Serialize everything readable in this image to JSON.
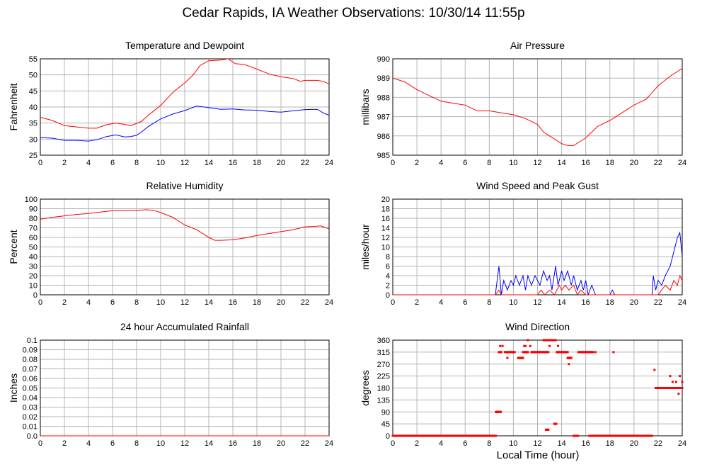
{
  "page": {
    "title": "Cedar Rapids, IA Weather Observations: 10/30/14 11:55p",
    "xlabel": "Local Time (hour)"
  },
  "colors": {
    "red": "#ff0000",
    "blue": "#0000ff",
    "grid": "#b4b4b4"
  },
  "chart_data": [
    {
      "type": "line",
      "title": "Temperature and Dewpoint",
      "ylabel": "Fahrenheit",
      "xlim": [
        0,
        24
      ],
      "ylim": [
        25,
        55
      ],
      "xticks": [
        0,
        2,
        4,
        6,
        8,
        10,
        12,
        14,
        16,
        18,
        20,
        22,
        24
      ],
      "yticks": [
        25,
        30,
        35,
        40,
        45,
        50,
        55
      ],
      "grid": true,
      "series": [
        {
          "color": "#ff0000",
          "x": [
            0,
            1,
            2,
            3,
            4,
            4.7,
            5.5,
            6.3,
            7.0,
            7.5,
            8.0,
            8.4,
            9.0,
            10.0,
            11.0,
            12.0,
            12.7,
            13.3,
            14.0,
            15.0,
            15.6,
            16.2,
            17.0,
            18.0,
            19.0,
            20.0,
            21.0,
            21.6,
            22.0,
            23.0,
            23.5,
            24.0
          ],
          "values": [
            36.8,
            35.8,
            34.2,
            33.8,
            33.4,
            33.4,
            34.5,
            35.0,
            34.6,
            34.2,
            34.9,
            35.5,
            37.5,
            40.5,
            44.5,
            47.5,
            50.0,
            53.0,
            54.4,
            54.6,
            55.0,
            53.5,
            53.2,
            51.8,
            50.3,
            49.4,
            48.9,
            48.0,
            48.3,
            48.3,
            48.0,
            47.2
          ]
        },
        {
          "color": "#0000ff",
          "x": [
            0,
            1,
            2,
            3,
            4,
            4.7,
            5.5,
            6.3,
            7.0,
            7.5,
            8.0,
            8.4,
            9.0,
            10.0,
            11.0,
            12.0,
            13.0,
            14.0,
            15.0,
            16.0,
            17.0,
            18.0,
            19.0,
            20.0,
            21.0,
            22.0,
            23.0,
            23.5,
            24.0
          ],
          "values": [
            30.5,
            30.3,
            29.6,
            29.6,
            29.4,
            29.8,
            30.8,
            31.3,
            30.7,
            30.8,
            31.2,
            32.2,
            34.0,
            36.3,
            37.8,
            38.9,
            40.3,
            39.8,
            39.3,
            39.4,
            39.1,
            39.0,
            38.6,
            38.4,
            38.8,
            39.2,
            39.3,
            38.2,
            37.4
          ]
        }
      ]
    },
    {
      "type": "line",
      "title": "Air Pressure",
      "ylabel": "millibars",
      "xlim": [
        0,
        24
      ],
      "ylim": [
        985,
        990
      ],
      "xticks": [
        0,
        2,
        4,
        6,
        8,
        10,
        12,
        14,
        16,
        18,
        20,
        22,
        24
      ],
      "yticks": [
        985,
        986,
        987,
        988,
        989,
        990
      ],
      "grid": true,
      "series": [
        {
          "color": "#ff0000",
          "x": [
            0,
            0.5,
            1,
            2,
            3,
            4,
            5,
            6,
            7,
            8,
            9,
            10,
            11,
            12,
            12.5,
            13,
            13.5,
            14,
            14.5,
            15,
            15.5,
            16,
            17,
            18,
            19,
            20,
            21,
            22,
            23,
            23.5,
            24
          ],
          "values": [
            989.0,
            988.9,
            988.8,
            988.4,
            988.1,
            987.8,
            987.7,
            987.6,
            987.3,
            987.3,
            987.2,
            987.1,
            986.9,
            986.6,
            986.2,
            986.0,
            985.8,
            985.6,
            985.5,
            985.5,
            985.7,
            985.9,
            986.5,
            986.8,
            987.2,
            987.6,
            987.9,
            988.6,
            989.1,
            989.3,
            989.5
          ]
        }
      ]
    },
    {
      "type": "line",
      "title": "Relative Humidity",
      "ylabel": "Percent",
      "xlim": [
        0,
        24
      ],
      "ylim": [
        0,
        100
      ],
      "xticks": [
        0,
        2,
        4,
        6,
        8,
        10,
        12,
        14,
        16,
        18,
        20,
        22,
        24
      ],
      "yticks": [
        0,
        10,
        20,
        30,
        40,
        50,
        60,
        70,
        80,
        90,
        100
      ],
      "grid": true,
      "series": [
        {
          "color": "#ff0000",
          "x": [
            0,
            1,
            2,
            3,
            4,
            5,
            6,
            7,
            8,
            8.8,
            9.5,
            10,
            11,
            12,
            13,
            14,
            14.5,
            15,
            16,
            17,
            18,
            19,
            20,
            21,
            22,
            22.8,
            23.3,
            24
          ],
          "values": [
            79,
            81,
            82.5,
            84,
            85,
            86.5,
            88,
            88,
            88,
            89,
            88,
            86,
            81,
            73,
            68,
            60,
            57,
            57,
            57.5,
            59.5,
            62,
            64,
            66,
            68,
            71,
            71.5,
            72,
            69
          ]
        }
      ]
    },
    {
      "type": "line",
      "title": "Wind Speed and Peak Gust",
      "ylabel": "miles/hour",
      "xlim": [
        0,
        24
      ],
      "ylim": [
        0,
        20
      ],
      "xticks": [
        0,
        2,
        4,
        6,
        8,
        10,
        12,
        14,
        16,
        18,
        20,
        22,
        24
      ],
      "yticks": [
        0,
        2,
        4,
        6,
        8,
        10,
        12,
        14,
        16,
        18,
        20
      ],
      "grid": true,
      "series": [
        {
          "color": "#0000ff",
          "x": [
            0,
            8.5,
            8.8,
            9.0,
            9.2,
            9.5,
            9.8,
            10.0,
            10.2,
            10.5,
            10.8,
            11.0,
            11.2,
            11.5,
            11.8,
            12.0,
            12.2,
            12.5,
            12.8,
            13.0,
            13.2,
            13.5,
            13.7,
            14.0,
            14.2,
            14.5,
            14.8,
            15.0,
            15.3,
            15.6,
            15.8,
            16.0,
            16.2,
            16.5,
            16.8,
            17.0,
            18.0,
            18.2,
            18.4,
            18.6,
            21.5,
            21.6,
            21.8,
            22.0,
            22.3,
            22.6,
            23.0,
            23.3,
            23.6,
            23.8,
            24.0
          ],
          "values": [
            0,
            0,
            6,
            0,
            3,
            1,
            3,
            2,
            4,
            2,
            4,
            1,
            4,
            2,
            4,
            3,
            2,
            5,
            3,
            4,
            1,
            6,
            2,
            5,
            3,
            5,
            2,
            4,
            1,
            3,
            1,
            3,
            0,
            2,
            0,
            0,
            0,
            1,
            0,
            0,
            0,
            4,
            1,
            3,
            2,
            4,
            6,
            9,
            12,
            13,
            8
          ]
        },
        {
          "color": "#ff0000",
          "x": [
            0,
            8.5,
            8.8,
            9.0,
            12.0,
            12.3,
            12.6,
            13.0,
            13.4,
            13.8,
            14.0,
            14.3,
            14.6,
            15.0,
            15.3,
            15.6,
            16.0,
            16.3,
            21.5,
            22.0,
            22.3,
            22.6,
            23.0,
            23.3,
            23.6,
            23.8,
            24.0
          ],
          "values": [
            0,
            0,
            1,
            0,
            0,
            1,
            0,
            1,
            0,
            2,
            1,
            2,
            1,
            2,
            0,
            1,
            0,
            0,
            0,
            0,
            1,
            2,
            1,
            3,
            2,
            4,
            3
          ]
        }
      ]
    },
    {
      "type": "line",
      "title": "24 hour Accumulated Rainfall",
      "ylabel": "Inches",
      "xlim": [
        0,
        24
      ],
      "ylim": [
        0,
        0.1
      ],
      "xticks": [
        0,
        2,
        4,
        6,
        8,
        10,
        12,
        14,
        16,
        18,
        20,
        22,
        24
      ],
      "yticks": [
        "0.0",
        "0.01",
        "0.02",
        "0.03",
        "0.04",
        "0.05",
        "0.06",
        "0.07",
        "0.08",
        "0.09",
        "0.1"
      ],
      "grid": true,
      "series": [
        {
          "color": "#ff0000",
          "x": [
            0,
            24
          ],
          "values": [
            0,
            0
          ]
        }
      ]
    },
    {
      "type": "scatter",
      "title": "Wind Direction",
      "ylabel": "degrees",
      "xlim": [
        0,
        24
      ],
      "ylim": [
        0,
        360
      ],
      "xticks": [
        0,
        2,
        4,
        6,
        8,
        10,
        12,
        14,
        16,
        18,
        20,
        22,
        24
      ],
      "yticks": [
        0,
        45,
        90,
        135,
        180,
        225,
        270,
        315,
        360
      ],
      "grid": true,
      "series": [
        {
          "color": "#ff0000",
          "runs": [
            {
              "x0": 0.0,
              "x1": 8.55,
              "value": 0
            },
            {
              "x0": 8.55,
              "x1": 8.95,
              "value": 90
            },
            {
              "x0": 8.8,
              "x1": 9.0,
              "value": 315
            },
            {
              "x0": 9.3,
              "x1": 10.1,
              "value": 315
            },
            {
              "x0": 10.4,
              "x1": 10.8,
              "value": 293
            },
            {
              "x0": 10.8,
              "x1": 11.2,
              "value": 315
            },
            {
              "x0": 11.5,
              "x1": 12.9,
              "value": 315
            },
            {
              "x0": 12.5,
              "x1": 13.5,
              "value": 360
            },
            {
              "x0": 12.7,
              "x1": 12.9,
              "value": 23
            },
            {
              "x0": 13.4,
              "x1": 13.55,
              "value": 45
            },
            {
              "x0": 13.6,
              "x1": 14.5,
              "value": 315
            },
            {
              "x0": 14.5,
              "x1": 14.8,
              "value": 293
            },
            {
              "x0": 15.0,
              "x1": 15.35,
              "value": 0
            },
            {
              "x0": 15.4,
              "x1": 16.6,
              "value": 315
            },
            {
              "x0": 16.3,
              "x1": 21.5,
              "value": 0
            },
            {
              "x0": 21.8,
              "x1": 24.0,
              "value": 180
            }
          ],
          "x": [
            8.9,
            9.1,
            9.5,
            10.9,
            11.0,
            11.2,
            11.4,
            13.0,
            13.7,
            14.6,
            16.8,
            18.3,
            21.7,
            23.0,
            23.2,
            23.5,
            23.7,
            23.8,
            24.0
          ],
          "values": [
            338,
            338,
            293,
            338,
            338,
            360,
            338,
            338,
            338,
            270,
            315,
            315,
            248,
            225,
            203,
            203,
            158,
            225,
            203
          ]
        }
      ]
    }
  ]
}
